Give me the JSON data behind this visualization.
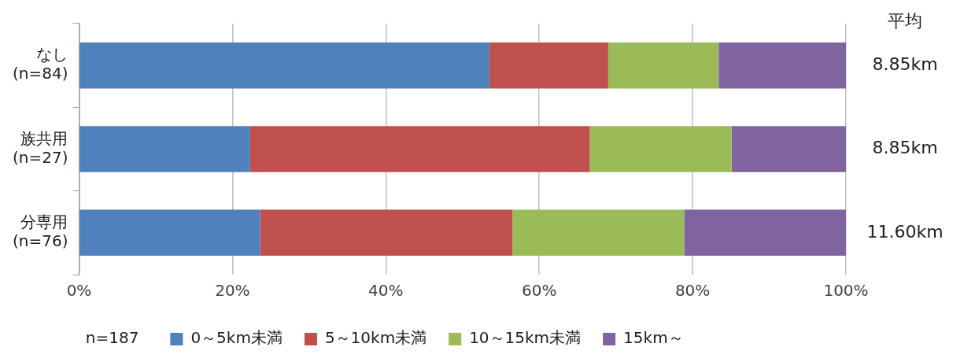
{
  "chart_data": {
    "type": "bar",
    "orientation": "horizontal",
    "stacked": true,
    "categories": [
      "なし\n(n=84)",
      "族共用\n(n=27)",
      "分専用\n(n=76)"
    ],
    "series": [
      {
        "name": "0～5km未満",
        "color": "#4f81bd",
        "values": [
          53.5,
          22.3,
          23.6
        ]
      },
      {
        "name": "5～10km未満",
        "color": "#c0504d",
        "values": [
          15.5,
          44.3,
          32.9
        ]
      },
      {
        "name": "10～15km未満",
        "color": "#9bbb59",
        "values": [
          14.4,
          18.5,
          22.4
        ]
      },
      {
        "name": "15km～",
        "color": "#8064a2",
        "values": [
          16.6,
          14.9,
          21.1
        ]
      }
    ],
    "xlim": [
      0,
      100
    ],
    "xticks": [
      {
        "value": 0,
        "label": "0%"
      },
      {
        "value": 20,
        "label": "20%"
      },
      {
        "value": 40,
        "label": "40%"
      },
      {
        "value": 60,
        "label": "60%"
      },
      {
        "value": 80,
        "label": "80%"
      },
      {
        "value": 100,
        "label": "100%"
      }
    ],
    "grid": "x",
    "legend": "bottom",
    "legend_title": "n=187",
    "annotations": [
      "平均",
      "8.85km",
      "8.85km",
      "11.60km"
    ]
  }
}
